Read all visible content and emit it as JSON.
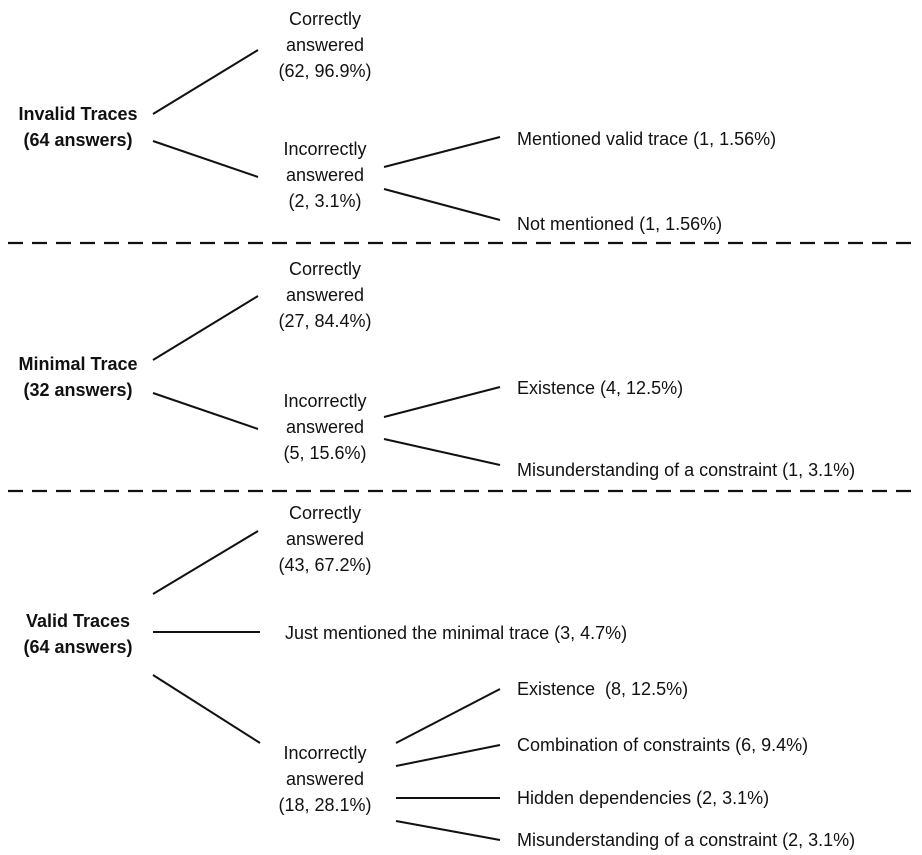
{
  "diagram": {
    "sections": [
      {
        "root": [
          "Invalid Traces",
          "(64 answers)"
        ],
        "correct": [
          "Correctly",
          "answered",
          "(62, 96.9%)"
        ],
        "incorrect": [
          "Incorrectly",
          "answered",
          "(2, 3.1%)"
        ],
        "leaves": [
          "Mentioned valid trace (1, 1.56%)",
          "Not mentioned (1, 1.56%)"
        ]
      },
      {
        "root": [
          "Minimal Trace",
          "(32 answers)"
        ],
        "correct": [
          "Correctly",
          "answered",
          "(27, 84.4%)"
        ],
        "incorrect": [
          "Incorrectly",
          "answered",
          "(5, 15.6%)"
        ],
        "leaves": [
          "Existence (4, 12.5%)",
          "Misunderstanding of a constraint (1, 3.1%)"
        ]
      },
      {
        "root": [
          "Valid Traces",
          "(64 answers)"
        ],
        "correct": [
          "Correctly",
          "answered",
          "(43, 67.2%)"
        ],
        "middle": "Just mentioned the minimal trace (3, 4.7%)",
        "incorrect": [
          "Incorrectly",
          "answered",
          "(18, 28.1%)"
        ],
        "leaves": [
          "Existence  (8, 12.5%)",
          "Combination of constraints (6, 9.4%)",
          "Hidden dependencies (2, 3.1%)",
          "Misunderstanding of a constraint (2, 3.1%)"
        ]
      }
    ]
  }
}
